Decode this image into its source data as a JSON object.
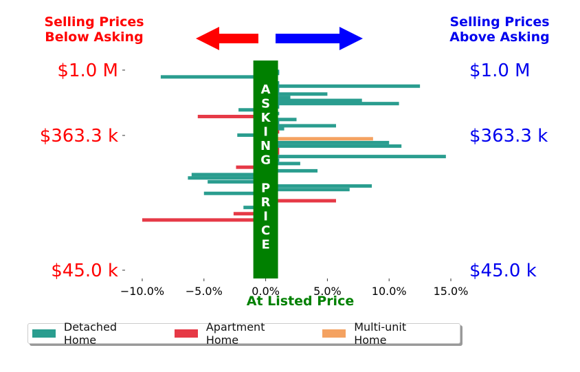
{
  "header": {
    "left_text": [
      "Selling Prices",
      "Below Asking"
    ],
    "right_text": [
      "Selling Prices",
      "Above Asking"
    ],
    "left_color": "#ff0000",
    "right_color": "#0000ee"
  },
  "colors": {
    "detached": "#2a9d8f",
    "apartment": "#e63946",
    "multi": "#f4a261",
    "asking_band": "#008000",
    "left_arrow": "#ff0000",
    "right_arrow": "#0000ff"
  },
  "band_text": "ASKING PRICE",
  "chart_data": {
    "type": "bar",
    "orientation": "horizontal",
    "title": "",
    "xlabel": "At Listed Price",
    "xlim": [
      -11,
      16
    ],
    "x_ticks": [
      -10,
      -5,
      0,
      5,
      10,
      15
    ],
    "x_tick_labels": [
      "−10.0%",
      "−5.0%",
      "0.0%",
      "5.0%",
      "10.0%",
      "15.0%"
    ],
    "y_scale": "log",
    "ylim": [
      40000,
      1100000
    ],
    "y_ticks": [
      45000,
      363300,
      1000000
    ],
    "y_tick_labels_left": [
      "$45.0 k",
      "$363.3 k",
      "$1.0 M"
    ],
    "y_tick_labels_right": [
      "$45.0 k",
      "$363.3 k",
      "$1.0 M"
    ],
    "legend": {
      "placement": "below",
      "entries": [
        "Detached Home",
        "Apartment Home",
        "Multi-unit Home"
      ]
    },
    "bars": [
      {
        "price": 980000,
        "pct": 1.1,
        "type": "Detached Home"
      },
      {
        "price": 950000,
        "pct": 1.1,
        "type": "Detached Home"
      },
      {
        "price": 900000,
        "pct": -8.5,
        "type": "Detached Home"
      },
      {
        "price": 870000,
        "pct": -0.5,
        "type": "Detached Home"
      },
      {
        "price": 820000,
        "pct": 1.1,
        "type": "Detached Home"
      },
      {
        "price": 780000,
        "pct": 12.5,
        "type": "Detached Home"
      },
      {
        "price": 750000,
        "pct": 1.1,
        "type": "Detached Home"
      },
      {
        "price": 720000,
        "pct": 1.1,
        "type": "Detached Home"
      },
      {
        "price": 690000,
        "pct": 5.0,
        "type": "Detached Home"
      },
      {
        "price": 655000,
        "pct": 2.0,
        "type": "Detached Home"
      },
      {
        "price": 625000,
        "pct": 7.8,
        "type": "Detached Home"
      },
      {
        "price": 595000,
        "pct": 10.8,
        "type": "Detached Home"
      },
      {
        "price": 565000,
        "pct": 1.1,
        "type": "Detached Home"
      },
      {
        "price": 540000,
        "pct": -2.2,
        "type": "Detached Home"
      },
      {
        "price": 510000,
        "pct": 1.1,
        "type": "Detached Home"
      },
      {
        "price": 487000,
        "pct": -5.5,
        "type": "Apartment Home"
      },
      {
        "price": 465000,
        "pct": 2.5,
        "type": "Detached Home"
      },
      {
        "price": 443000,
        "pct": 1.1,
        "type": "Detached Home"
      },
      {
        "price": 422000,
        "pct": 5.7,
        "type": "Detached Home"
      },
      {
        "price": 403000,
        "pct": 1.5,
        "type": "Detached Home"
      },
      {
        "price": 384000,
        "pct": 1.1,
        "type": "Apartment Home"
      },
      {
        "price": 365000,
        "pct": -2.3,
        "type": "Detached Home"
      },
      {
        "price": 345000,
        "pct": 8.7,
        "type": "Multi-unit Home"
      },
      {
        "price": 325000,
        "pct": 10.0,
        "type": "Detached Home"
      },
      {
        "price": 308000,
        "pct": 11.0,
        "type": "Detached Home"
      },
      {
        "price": 292000,
        "pct": 1.1,
        "type": "Apartment Home"
      },
      {
        "price": 277000,
        "pct": 1.1,
        "type": "Apartment Home"
      },
      {
        "price": 262000,
        "pct": 14.6,
        "type": "Detached Home"
      },
      {
        "price": 248000,
        "pct": 1.1,
        "type": "Detached Home"
      },
      {
        "price": 235000,
        "pct": 2.8,
        "type": "Detached Home"
      },
      {
        "price": 222000,
        "pct": -2.4,
        "type": "Apartment Home"
      },
      {
        "price": 210000,
        "pct": 4.2,
        "type": "Detached Home"
      },
      {
        "price": 198000,
        "pct": -6.0,
        "type": "Detached Home"
      },
      {
        "price": 188000,
        "pct": -6.3,
        "type": "Detached Home"
      },
      {
        "price": 177000,
        "pct": -4.7,
        "type": "Detached Home"
      },
      {
        "price": 166000,
        "pct": 8.6,
        "type": "Detached Home"
      },
      {
        "price": 157000,
        "pct": 6.8,
        "type": "Detached Home"
      },
      {
        "price": 148000,
        "pct": -5.0,
        "type": "Detached Home"
      },
      {
        "price": 132000,
        "pct": 5.7,
        "type": "Apartment Home"
      },
      {
        "price": 119000,
        "pct": -1.8,
        "type": "Detached Home"
      },
      {
        "price": 108000,
        "pct": -2.6,
        "type": "Apartment Home"
      },
      {
        "price": 98000,
        "pct": -10.0,
        "type": "Apartment Home"
      }
    ]
  }
}
